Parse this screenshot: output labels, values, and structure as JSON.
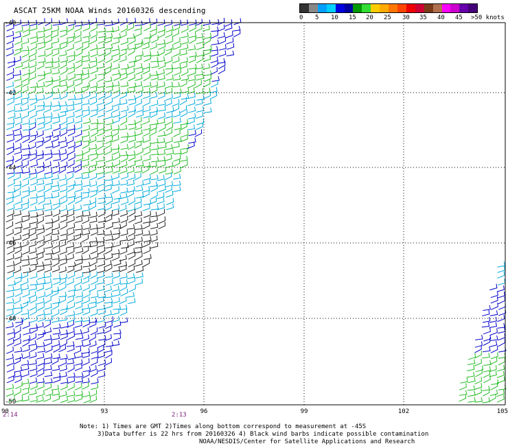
{
  "header": {
    "title": "ASCAT 25KM NOAA Winds 20160326 descending"
  },
  "legend": {
    "colors": [
      "#333333",
      "#888888",
      "#00a0ff",
      "#00d0ff",
      "#0000e0",
      "#0000a0",
      "#009900",
      "#33dd33",
      "#ffcc00",
      "#ffaa00",
      "#ff7700",
      "#ff4400",
      "#ee0000",
      "#cc0033",
      "#7a3b1a",
      "#b07050",
      "#ff00ff",
      "#cc00cc",
      "#6600aa",
      "#440077"
    ],
    "labels": [
      "0",
      "5",
      "10",
      "15",
      "20",
      "25",
      "30",
      "35",
      "40",
      "45",
      ">50 knots"
    ]
  },
  "map": {
    "lat_labels": [
      "-40",
      "-42",
      "-44",
      "-46",
      "-48",
      "-50"
    ],
    "lon_labels": [
      "90",
      "93",
      "96",
      "99",
      "102",
      "105"
    ],
    "pass_times": [
      "2:14",
      "2:13"
    ]
  },
  "notes": {
    "line1": "Note: 1) Times are GMT 2)Times along bottom correspond to measurement at -45S",
    "line2": "3)Data buffer is 22 hrs from 20160326 4) Black wind barbs indicate possible contamination",
    "line3": "NOAA/NESDIS/Center for Satellite Applications and Research"
  }
}
